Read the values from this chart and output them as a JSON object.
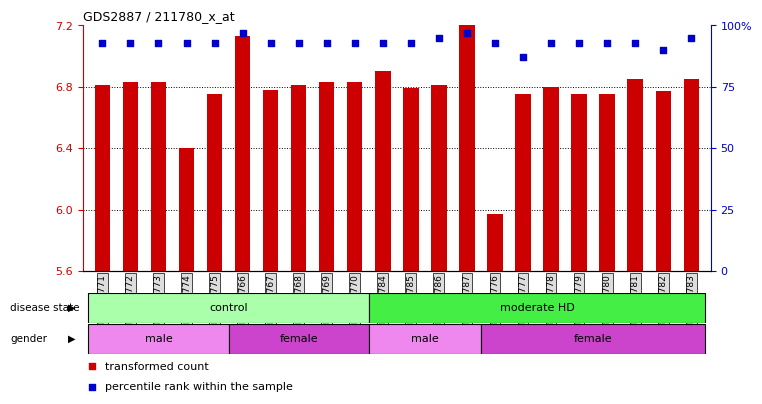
{
  "title": "GDS2887 / 211780_x_at",
  "samples": [
    "GSM217771",
    "GSM217772",
    "GSM217773",
    "GSM217774",
    "GSM217775",
    "GSM217766",
    "GSM217767",
    "GSM217768",
    "GSM217769",
    "GSM217770",
    "GSM217784",
    "GSM217785",
    "GSM217786",
    "GSM217787",
    "GSM217776",
    "GSM217777",
    "GSM217778",
    "GSM217779",
    "GSM217780",
    "GSM217781",
    "GSM217782",
    "GSM217783"
  ],
  "bar_values": [
    6.81,
    6.83,
    6.83,
    6.4,
    6.75,
    7.13,
    6.78,
    6.81,
    6.83,
    6.83,
    6.9,
    6.79,
    6.81,
    7.2,
    5.97,
    6.75,
    6.8,
    6.75,
    6.75,
    6.85,
    6.77,
    6.85
  ],
  "percentile_values": [
    93,
    93,
    93,
    93,
    93,
    97,
    93,
    93,
    93,
    93,
    93,
    93,
    95,
    97,
    93,
    87,
    93,
    93,
    93,
    93,
    90,
    95
  ],
  "ylim_left": [
    5.6,
    7.2
  ],
  "ylim_right": [
    0,
    100
  ],
  "yticks_left": [
    5.6,
    6.0,
    6.4,
    6.8,
    7.2
  ],
  "yticks_right": [
    0,
    25,
    50,
    75,
    100
  ],
  "bar_color": "#cc0000",
  "dot_color": "#0000cc",
  "background_color": "#ffffff",
  "tick_label_bg": "#dddddd",
  "disease_state_groups": [
    {
      "label": "control",
      "start": 0,
      "end": 10,
      "color": "#aaffaa"
    },
    {
      "label": "moderate HD",
      "start": 10,
      "end": 22,
      "color": "#44ee44"
    }
  ],
  "gender_groups": [
    {
      "label": "male",
      "start": 0,
      "end": 5,
      "color": "#ee88ee"
    },
    {
      "label": "female",
      "start": 5,
      "end": 10,
      "color": "#cc44cc"
    },
    {
      "label": "male",
      "start": 10,
      "end": 14,
      "color": "#ee88ee"
    },
    {
      "label": "female",
      "start": 14,
      "end": 22,
      "color": "#cc44cc"
    }
  ],
  "legend_items": [
    {
      "label": "transformed count",
      "color": "#cc0000",
      "marker": "s"
    },
    {
      "label": "percentile rank within the sample",
      "color": "#0000cc",
      "marker": "s"
    }
  ],
  "left_axis_color": "#cc0000",
  "right_axis_color": "#0000cc",
  "bar_width": 0.55
}
